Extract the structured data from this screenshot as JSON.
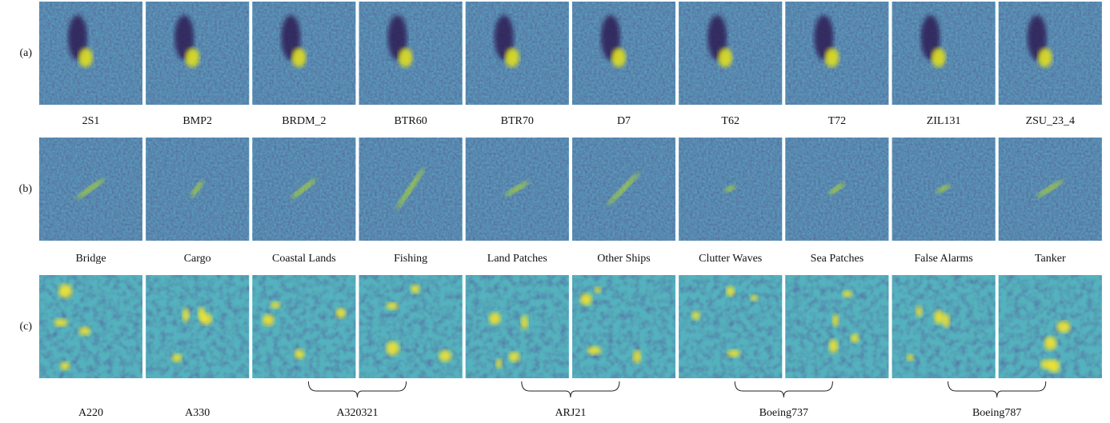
{
  "rows": [
    {
      "label": "(a)",
      "captions": [
        "2S1",
        "BMP2",
        "BRDM_2",
        "BTR60",
        "BTR70",
        "D7",
        "T62",
        "T72",
        "ZIL131",
        "ZSU_23_4"
      ]
    },
    {
      "label": "(b)",
      "captions": [
        "Bridge",
        "Cargo",
        "Coastal Lands",
        "Fishing",
        "Land Patches",
        "Other Ships",
        "Clutter Waves",
        "Sea Patches",
        "False Alarms",
        "Tanker"
      ]
    },
    {
      "label": "(c)",
      "captions": [
        "A220",
        "A330",
        "A320321",
        "ARJ21",
        "Boeing737",
        "Boeing787"
      ]
    }
  ]
}
